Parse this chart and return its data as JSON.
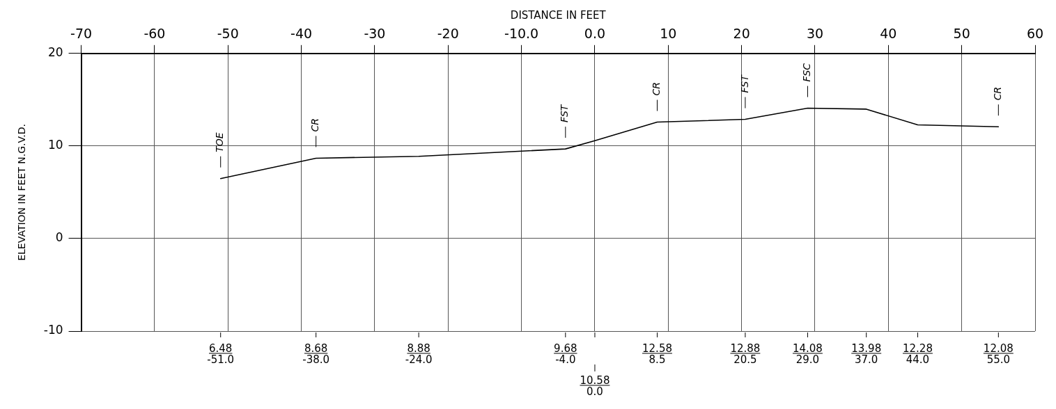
{
  "chart_data": {
    "type": "line",
    "xlabel": "DISTANCE IN FEET",
    "ylabel": "ELEVATION IN FEET N.G.V.D.",
    "x": [
      -51,
      -38,
      -24,
      -4,
      0,
      8.5,
      20.5,
      29,
      37,
      44,
      55
    ],
    "series": [
      {
        "color": "#000000",
        "values": [
          6.48,
          8.68,
          8.88,
          9.68,
          10.58,
          12.58,
          12.88,
          14.08,
          13.98,
          12.28,
          12.08
        ]
      }
    ],
    "xlim": [
      -70,
      60
    ],
    "xticks": [
      -70,
      -60,
      -50,
      -40,
      -30,
      -20,
      {
        "value": -10,
        "label": "-10.0"
      },
      {
        "value": 0,
        "label": "0.0"
      },
      10,
      20,
      30,
      40,
      50,
      60
    ],
    "ylim": [
      -10,
      20
    ],
    "yticks": [
      -10,
      0,
      10,
      20
    ],
    "grid": true,
    "legend": false,
    "marker": "none",
    "line_style": "solid",
    "annotations": [
      "6.48\n-51.0",
      "8.68\n-38.0",
      "8.88\n-24.0",
      "9.68\n-4.0",
      "10.58\n0.0",
      "12.58\n8.5",
      "12.88\n20.5",
      "14.08\n29.0",
      "13.98\n37.0",
      "12.28\n44.0",
      "12.08\n55.0",
      {
        "text": "TOE",
        "x": -51,
        "y": 6.48
      },
      {
        "text": "CR",
        "x": -38,
        "y": 8.68
      },
      {
        "text": "FST",
        "x": -4,
        "y": 9.68
      },
      {
        "text": "CR",
        "x": 8.5,
        "y": 12.58
      },
      {
        "text": "FST",
        "x": 20.5,
        "y": 12.88
      },
      {
        "text": "FSC",
        "x": 29,
        "y": 14.08
      },
      {
        "text": "CR",
        "x": 55,
        "y": 12.08
      }
    ]
  }
}
